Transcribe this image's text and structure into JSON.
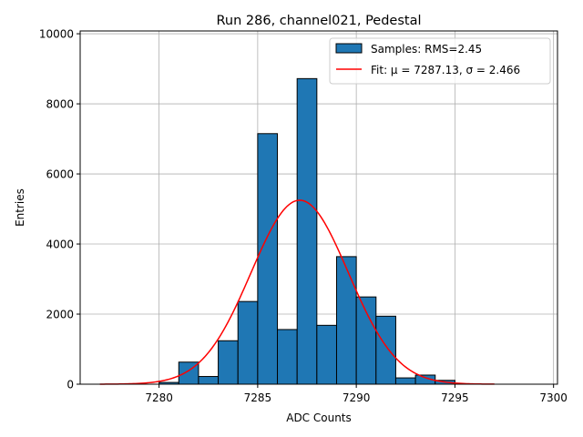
{
  "chart_data": {
    "type": "bar",
    "title": "Run 286, channel021, Pedestal",
    "xlabel": "ADC Counts",
    "ylabel": "Entries",
    "xlim": [
      7276,
      7300.2
    ],
    "ylim": [
      0,
      10080
    ],
    "x_ticks": [
      "7280",
      "7285",
      "7290",
      "7295",
      "7300"
    ],
    "x_tick_values": [
      7280,
      7285,
      7290,
      7295,
      7300
    ],
    "y_ticks": [
      "0",
      "2000",
      "4000",
      "6000",
      "8000",
      "10000"
    ],
    "y_tick_values": [
      0,
      2000,
      4000,
      6000,
      8000,
      10000
    ],
    "grid": true,
    "legend_position": "top-right",
    "histogram": {
      "name": "Samples: RMS=2.45",
      "color": "#1f77b4",
      "edge_color": "#000000",
      "bins": [
        {
          "x0": 7280.0,
          "x1": 7281.0,
          "count": 50
        },
        {
          "x0": 7281.0,
          "x1": 7282.0,
          "count": 630
        },
        {
          "x0": 7282.0,
          "x1": 7283.0,
          "count": 220
        },
        {
          "x0": 7283.0,
          "x1": 7284.0,
          "count": 1240
        },
        {
          "x0": 7284.0,
          "x1": 7285.0,
          "count": 2360
        },
        {
          "x0": 7285.0,
          "x1": 7286.0,
          "count": 7150
        },
        {
          "x0": 7286.0,
          "x1": 7287.0,
          "count": 1560
        },
        {
          "x0": 7287.0,
          "x1": 7288.0,
          "count": 8720
        },
        {
          "x0": 7288.0,
          "x1": 7289.0,
          "count": 1680
        },
        {
          "x0": 7289.0,
          "x1": 7290.0,
          "count": 3640
        },
        {
          "x0": 7290.0,
          "x1": 7291.0,
          "count": 2490
        },
        {
          "x0": 7291.0,
          "x1": 7292.0,
          "count": 1940
        },
        {
          "x0": 7292.0,
          "x1": 7293.0,
          "count": 180
        },
        {
          "x0": 7293.0,
          "x1": 7294.0,
          "count": 260
        },
        {
          "x0": 7294.0,
          "x1": 7295.0,
          "count": 110
        }
      ]
    },
    "fit": {
      "name": "Fit: μ = 7287.13, σ = 2.466",
      "color": "#ff0000",
      "mu": 7287.13,
      "sigma": 2.466,
      "amplitude": 5250,
      "x_range": [
        7277,
        7297
      ]
    }
  }
}
